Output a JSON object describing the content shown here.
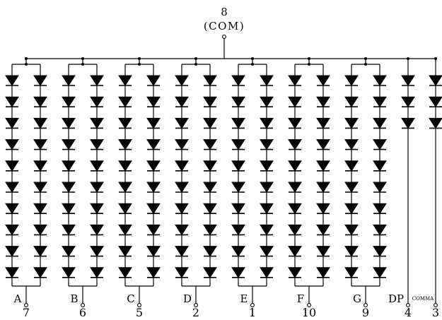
{
  "common": {
    "pin": "8",
    "label": "(COM)"
  },
  "segments": [
    {
      "name": "A",
      "pin": "7"
    },
    {
      "name": "B",
      "pin": "6"
    },
    {
      "name": "C",
      "pin": "5"
    },
    {
      "name": "D",
      "pin": "2"
    },
    {
      "name": "E",
      "pin": "1"
    },
    {
      "name": "F",
      "pin": "10"
    },
    {
      "name": "G",
      "pin": "9"
    }
  ],
  "extras": [
    {
      "name": "DP",
      "pin": "4"
    },
    {
      "name": "COMMA",
      "pin": "3"
    }
  ],
  "leds_per_segment_column": 10,
  "leds_per_extra_column": 3
}
